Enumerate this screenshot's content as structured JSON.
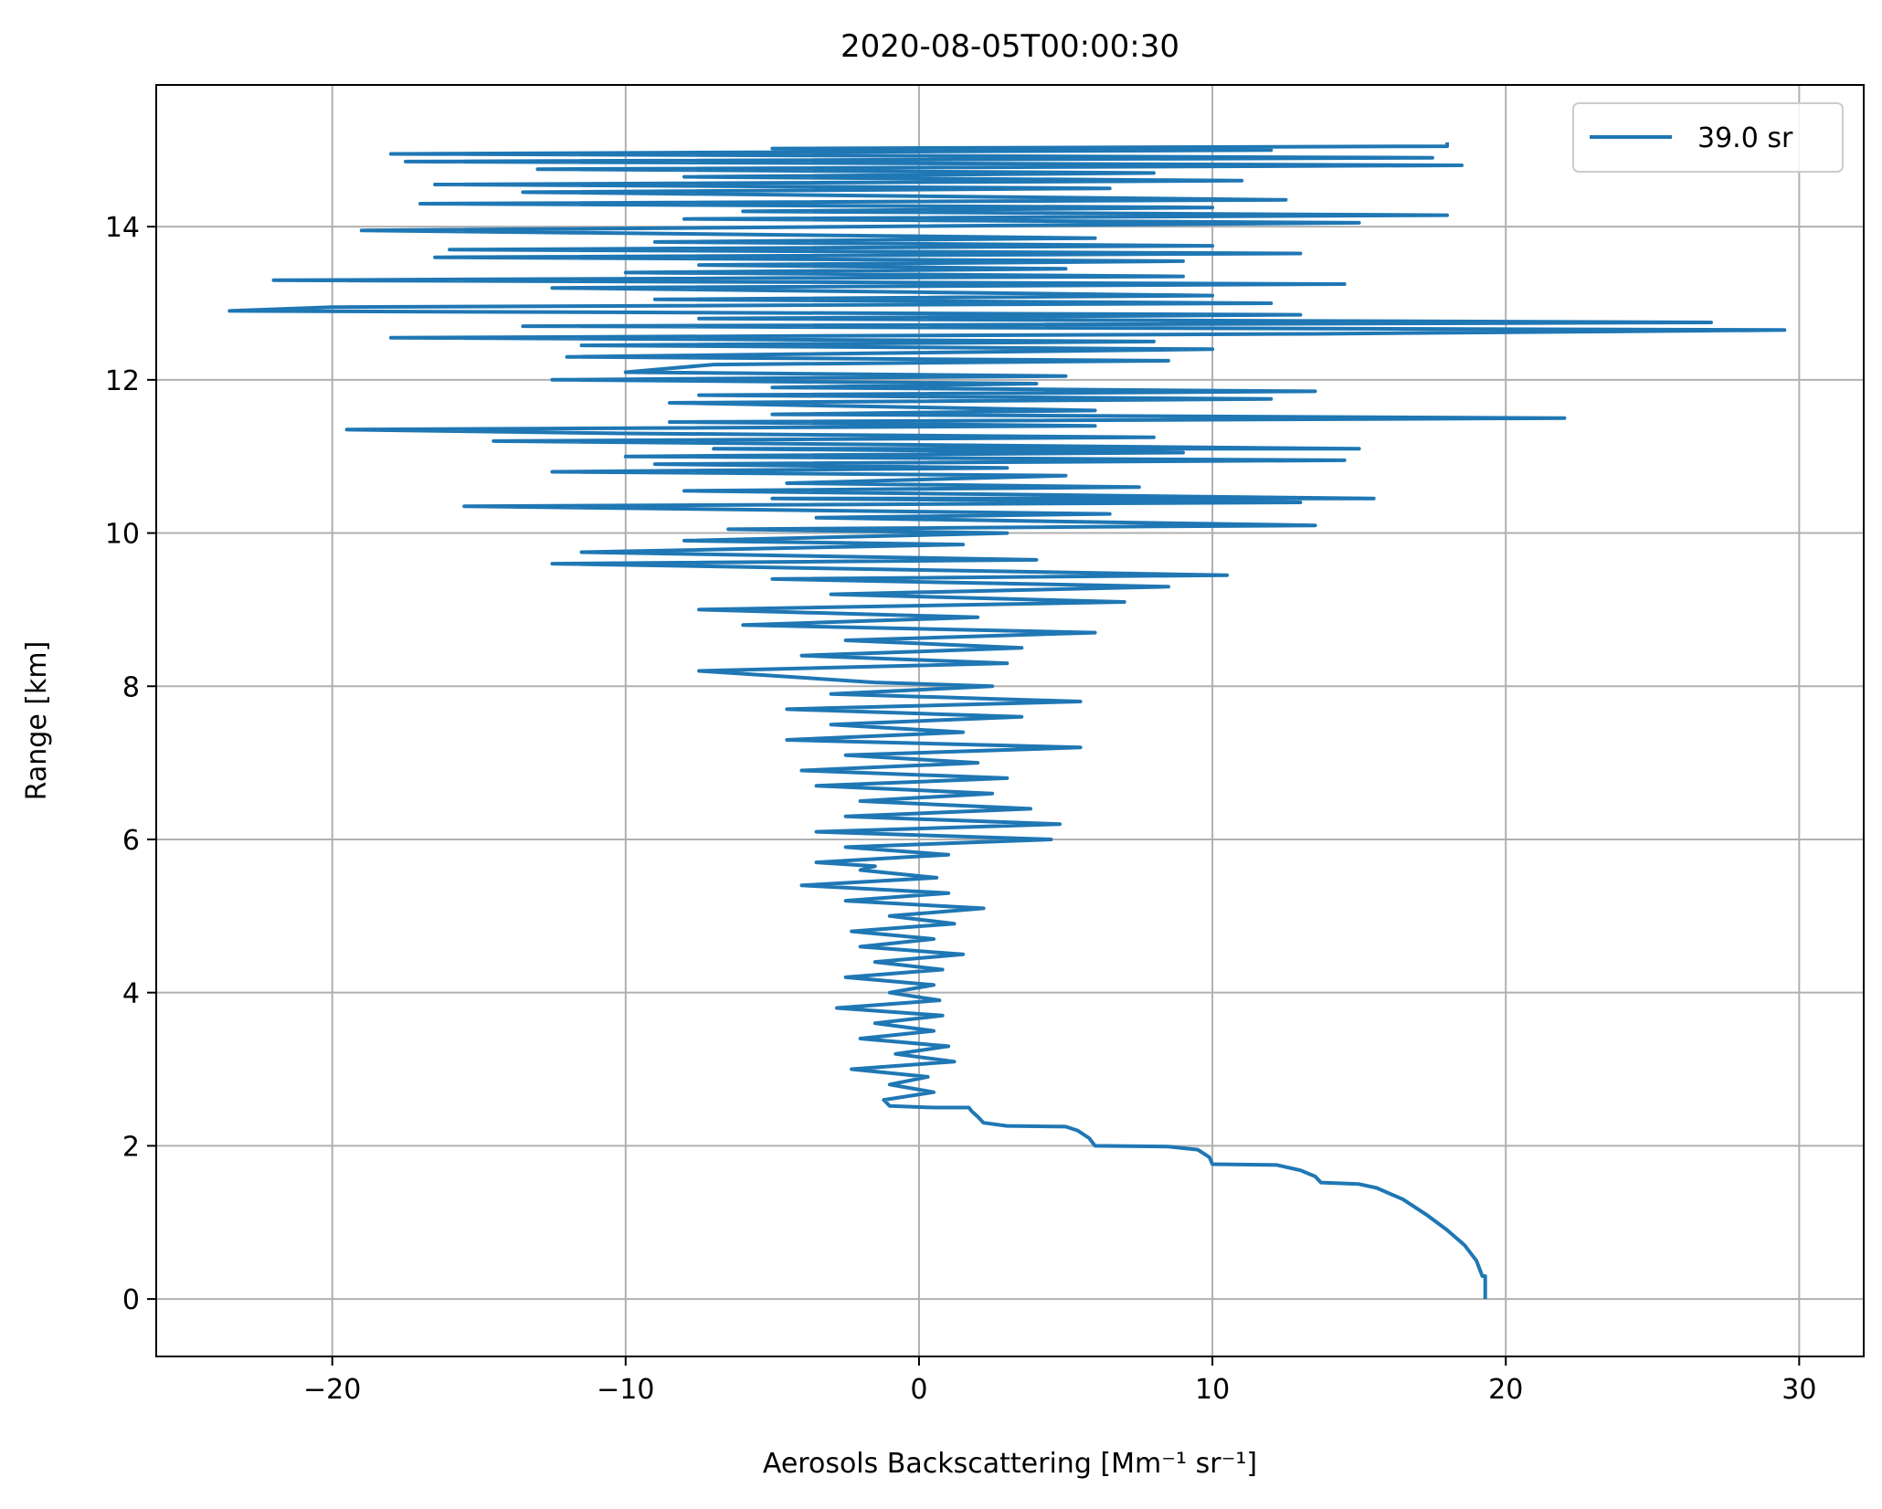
{
  "chart_data": {
    "type": "line",
    "title": "2020-08-05T00:00:30",
    "xlabel": "Aerosols Backscattering [Mm⁻¹ sr⁻¹]",
    "ylabel": "Range [km]",
    "xlim": [
      -26,
      32.2
    ],
    "ylim": [
      -0.75,
      15.85
    ],
    "xticks": [
      -20,
      -10,
      0,
      10,
      20,
      30
    ],
    "xtick_labels": [
      "−20",
      "−10",
      "0",
      "10",
      "20",
      "30"
    ],
    "yticks": [
      0,
      2,
      4,
      6,
      8,
      10,
      12,
      14
    ],
    "ytick_labels": [
      "0",
      "2",
      "4",
      "6",
      "8",
      "10",
      "12",
      "14"
    ],
    "grid": true,
    "legend_position": "top-right",
    "series_color": "#1f77b4",
    "series": [
      {
        "name": "39.0 sr",
        "points": [
          [
            19.3,
            0.0
          ],
          [
            19.3,
            0.3
          ],
          [
            19.2,
            0.3
          ],
          [
            19.0,
            0.5
          ],
          [
            18.6,
            0.7
          ],
          [
            18.0,
            0.9
          ],
          [
            17.3,
            1.1
          ],
          [
            16.5,
            1.3
          ],
          [
            15.6,
            1.45
          ],
          [
            15.0,
            1.5
          ],
          [
            13.7,
            1.52
          ],
          [
            13.5,
            1.6
          ],
          [
            13.0,
            1.68
          ],
          [
            12.2,
            1.75
          ],
          [
            10.0,
            1.76
          ],
          [
            9.9,
            1.85
          ],
          [
            9.5,
            1.95
          ],
          [
            8.5,
            1.99
          ],
          [
            6.0,
            2.0
          ],
          [
            5.8,
            2.1
          ],
          [
            5.4,
            2.2
          ],
          [
            5.0,
            2.25
          ],
          [
            3.0,
            2.26
          ],
          [
            2.2,
            2.3
          ],
          [
            2.0,
            2.38
          ],
          [
            1.8,
            2.45
          ],
          [
            1.7,
            2.5
          ],
          [
            0.5,
            2.5
          ],
          [
            -1.0,
            2.52
          ],
          [
            -1.2,
            2.6
          ],
          [
            0.5,
            2.7
          ],
          [
            -1.0,
            2.8
          ],
          [
            0.3,
            2.9
          ],
          [
            -2.3,
            3.0
          ],
          [
            1.2,
            3.1
          ],
          [
            -0.8,
            3.2
          ],
          [
            1.0,
            3.3
          ],
          [
            -2.0,
            3.4
          ],
          [
            0.5,
            3.5
          ],
          [
            -1.5,
            3.6
          ],
          [
            0.8,
            3.7
          ],
          [
            -2.8,
            3.8
          ],
          [
            0.7,
            3.9
          ],
          [
            -1.0,
            4.0
          ],
          [
            0.5,
            4.1
          ],
          [
            -2.5,
            4.2
          ],
          [
            0.8,
            4.3
          ],
          [
            -1.5,
            4.4
          ],
          [
            1.5,
            4.5
          ],
          [
            -2.0,
            4.6
          ],
          [
            0.5,
            4.7
          ],
          [
            -2.3,
            4.8
          ],
          [
            1.2,
            4.9
          ],
          [
            -1.0,
            5.0
          ],
          [
            2.2,
            5.1
          ],
          [
            -2.5,
            5.2
          ],
          [
            1.0,
            5.3
          ],
          [
            -4.0,
            5.4
          ],
          [
            0.6,
            5.5
          ],
          [
            -2.0,
            5.6
          ],
          [
            -1.5,
            5.65
          ],
          [
            -3.5,
            5.7
          ],
          [
            1.0,
            5.8
          ],
          [
            -2.5,
            5.9
          ],
          [
            4.5,
            6.0
          ],
          [
            -3.5,
            6.1
          ],
          [
            4.8,
            6.2
          ],
          [
            -2.5,
            6.3
          ],
          [
            3.8,
            6.4
          ],
          [
            -2.0,
            6.5
          ],
          [
            2.5,
            6.6
          ],
          [
            -3.5,
            6.7
          ],
          [
            3.0,
            6.8
          ],
          [
            -4.0,
            6.9
          ],
          [
            2.0,
            7.0
          ],
          [
            -2.5,
            7.1
          ],
          [
            5.5,
            7.2
          ],
          [
            -4.5,
            7.3
          ],
          [
            1.5,
            7.4
          ],
          [
            -3.0,
            7.5
          ],
          [
            3.5,
            7.6
          ],
          [
            -4.5,
            7.7
          ],
          [
            5.5,
            7.8
          ],
          [
            -3.0,
            7.9
          ],
          [
            2.5,
            8.0
          ],
          [
            -1.5,
            8.05
          ],
          [
            -7.5,
            8.2
          ],
          [
            3.0,
            8.3
          ],
          [
            -4.0,
            8.4
          ],
          [
            3.5,
            8.5
          ],
          [
            -2.5,
            8.6
          ],
          [
            6.0,
            8.7
          ],
          [
            -6.0,
            8.8
          ],
          [
            2.0,
            8.9
          ],
          [
            -7.5,
            9.0
          ],
          [
            7.0,
            9.1
          ],
          [
            -3.0,
            9.2
          ],
          [
            8.5,
            9.3
          ],
          [
            -5.0,
            9.4
          ],
          [
            10.5,
            9.45
          ],
          [
            -12.5,
            9.6
          ],
          [
            4.0,
            9.65
          ],
          [
            -11.5,
            9.75
          ],
          [
            1.5,
            9.85
          ],
          [
            -8.0,
            9.9
          ],
          [
            3.0,
            10.0
          ],
          [
            -6.5,
            10.05
          ],
          [
            13.5,
            10.1
          ],
          [
            -3.5,
            10.2
          ],
          [
            6.5,
            10.25
          ],
          [
            -15.5,
            10.35
          ],
          [
            13.0,
            10.4
          ],
          [
            -5.0,
            10.45
          ],
          [
            15.5,
            10.45
          ],
          [
            -8.0,
            10.55
          ],
          [
            7.5,
            10.6
          ],
          [
            -4.5,
            10.65
          ],
          [
            5.0,
            10.75
          ],
          [
            -12.5,
            10.8
          ],
          [
            3.0,
            10.85
          ],
          [
            -9.0,
            10.9
          ],
          [
            14.5,
            10.95
          ],
          [
            -10.0,
            11.0
          ],
          [
            9.0,
            11.05
          ],
          [
            -7.0,
            11.1
          ],
          [
            15.0,
            11.1
          ],
          [
            -14.5,
            11.2
          ],
          [
            8.0,
            11.25
          ],
          [
            -10.0,
            11.3
          ],
          [
            -19.5,
            11.35
          ],
          [
            6.0,
            11.4
          ],
          [
            -8.5,
            11.45
          ],
          [
            22.0,
            11.5
          ],
          [
            -5.0,
            11.55
          ],
          [
            6.0,
            11.6
          ],
          [
            -8.5,
            11.7
          ],
          [
            12.0,
            11.75
          ],
          [
            -7.5,
            11.8
          ],
          [
            13.5,
            11.85
          ],
          [
            -5.0,
            11.9
          ],
          [
            4.0,
            11.95
          ],
          [
            -12.5,
            12.0
          ],
          [
            5.0,
            12.05
          ],
          [
            -10.0,
            12.1
          ],
          [
            -7.0,
            12.2
          ],
          [
            8.5,
            12.25
          ],
          [
            -12.0,
            12.3
          ],
          [
            10.0,
            12.4
          ],
          [
            -11.5,
            12.45
          ],
          [
            8.0,
            12.5
          ],
          [
            -18.0,
            12.55
          ],
          [
            13.5,
            12.6
          ],
          [
            29.5,
            12.65
          ],
          [
            -13.5,
            12.7
          ],
          [
            27.0,
            12.75
          ],
          [
            -7.5,
            12.8
          ],
          [
            13.0,
            12.85
          ],
          [
            -23.5,
            12.9
          ],
          [
            -20.0,
            12.95
          ],
          [
            12.0,
            13.0
          ],
          [
            -9.0,
            13.05
          ],
          [
            10.0,
            13.1
          ],
          [
            -12.5,
            13.2
          ],
          [
            14.5,
            13.25
          ],
          [
            -22.0,
            13.3
          ],
          [
            9.0,
            13.35
          ],
          [
            -10.0,
            13.4
          ],
          [
            5.0,
            13.45
          ],
          [
            -7.5,
            13.5
          ],
          [
            9.0,
            13.55
          ],
          [
            -16.5,
            13.6
          ],
          [
            13.0,
            13.65
          ],
          [
            -16.0,
            13.7
          ],
          [
            10.0,
            13.75
          ],
          [
            -9.0,
            13.8
          ],
          [
            6.0,
            13.85
          ],
          [
            -19.0,
            13.95
          ],
          [
            15.0,
            14.05
          ],
          [
            -8.0,
            14.1
          ],
          [
            18.0,
            14.15
          ],
          [
            -6.0,
            14.2
          ],
          [
            10.0,
            14.25
          ],
          [
            -17.0,
            14.3
          ],
          [
            12.5,
            14.35
          ],
          [
            -13.5,
            14.45
          ],
          [
            6.5,
            14.5
          ],
          [
            -16.5,
            14.55
          ],
          [
            11.0,
            14.6
          ],
          [
            -8.0,
            14.65
          ],
          [
            8.0,
            14.7
          ],
          [
            -13.0,
            14.75
          ],
          [
            18.5,
            14.8
          ],
          [
            -17.5,
            14.85
          ],
          [
            17.5,
            14.9
          ],
          [
            -18.0,
            14.95
          ],
          [
            12.0,
            15.0
          ],
          [
            -5.0,
            15.02
          ],
          [
            18.0,
            15.05
          ],
          [
            18.0,
            15.1
          ]
        ]
      }
    ]
  }
}
